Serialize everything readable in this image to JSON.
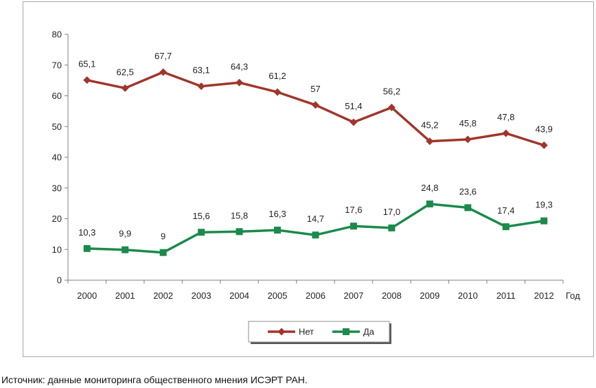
{
  "chart_data": {
    "type": "line",
    "title": "",
    "xlabel": "Год",
    "ylabel": "",
    "ylim": [
      0,
      80
    ],
    "yticks": [
      0,
      10,
      20,
      30,
      40,
      50,
      60,
      70,
      80
    ],
    "categories": [
      "2000",
      "2001",
      "2002",
      "2003",
      "2004",
      "2005",
      "2006",
      "2007",
      "2008",
      "2009",
      "2010",
      "2011",
      "2012"
    ],
    "series": [
      {
        "name": "Нет",
        "color": "#a0362a",
        "marker": "diamond",
        "values": [
          65.1,
          62.5,
          67.7,
          63.1,
          64.3,
          61.2,
          57,
          51.4,
          56.2,
          45.2,
          45.8,
          47.8,
          43.9
        ],
        "labels": [
          "65,1",
          "62,5",
          "67,7",
          "63,1",
          "64,3",
          "61,2",
          "57",
          "51,4",
          "56,2",
          "45,2",
          "45,8",
          "47,8",
          "43,9"
        ]
      },
      {
        "name": "Да",
        "color": "#1b8a4a",
        "marker": "square",
        "values": [
          10.3,
          9.9,
          9,
          15.6,
          15.8,
          16.3,
          14.7,
          17.6,
          17.0,
          24.8,
          23.6,
          17.4,
          19.3
        ],
        "labels": [
          "10,3",
          "9,9",
          "9",
          "15,6",
          "15,8",
          "16,3",
          "14,7",
          "17,6",
          "17,0",
          "24,8",
          "23,6",
          "17,4",
          "19,3"
        ]
      }
    ],
    "legend_position": "bottom-center"
  },
  "source_note": "Источник: данные мониторинга общественного мнения ИСЭРТ РАН."
}
